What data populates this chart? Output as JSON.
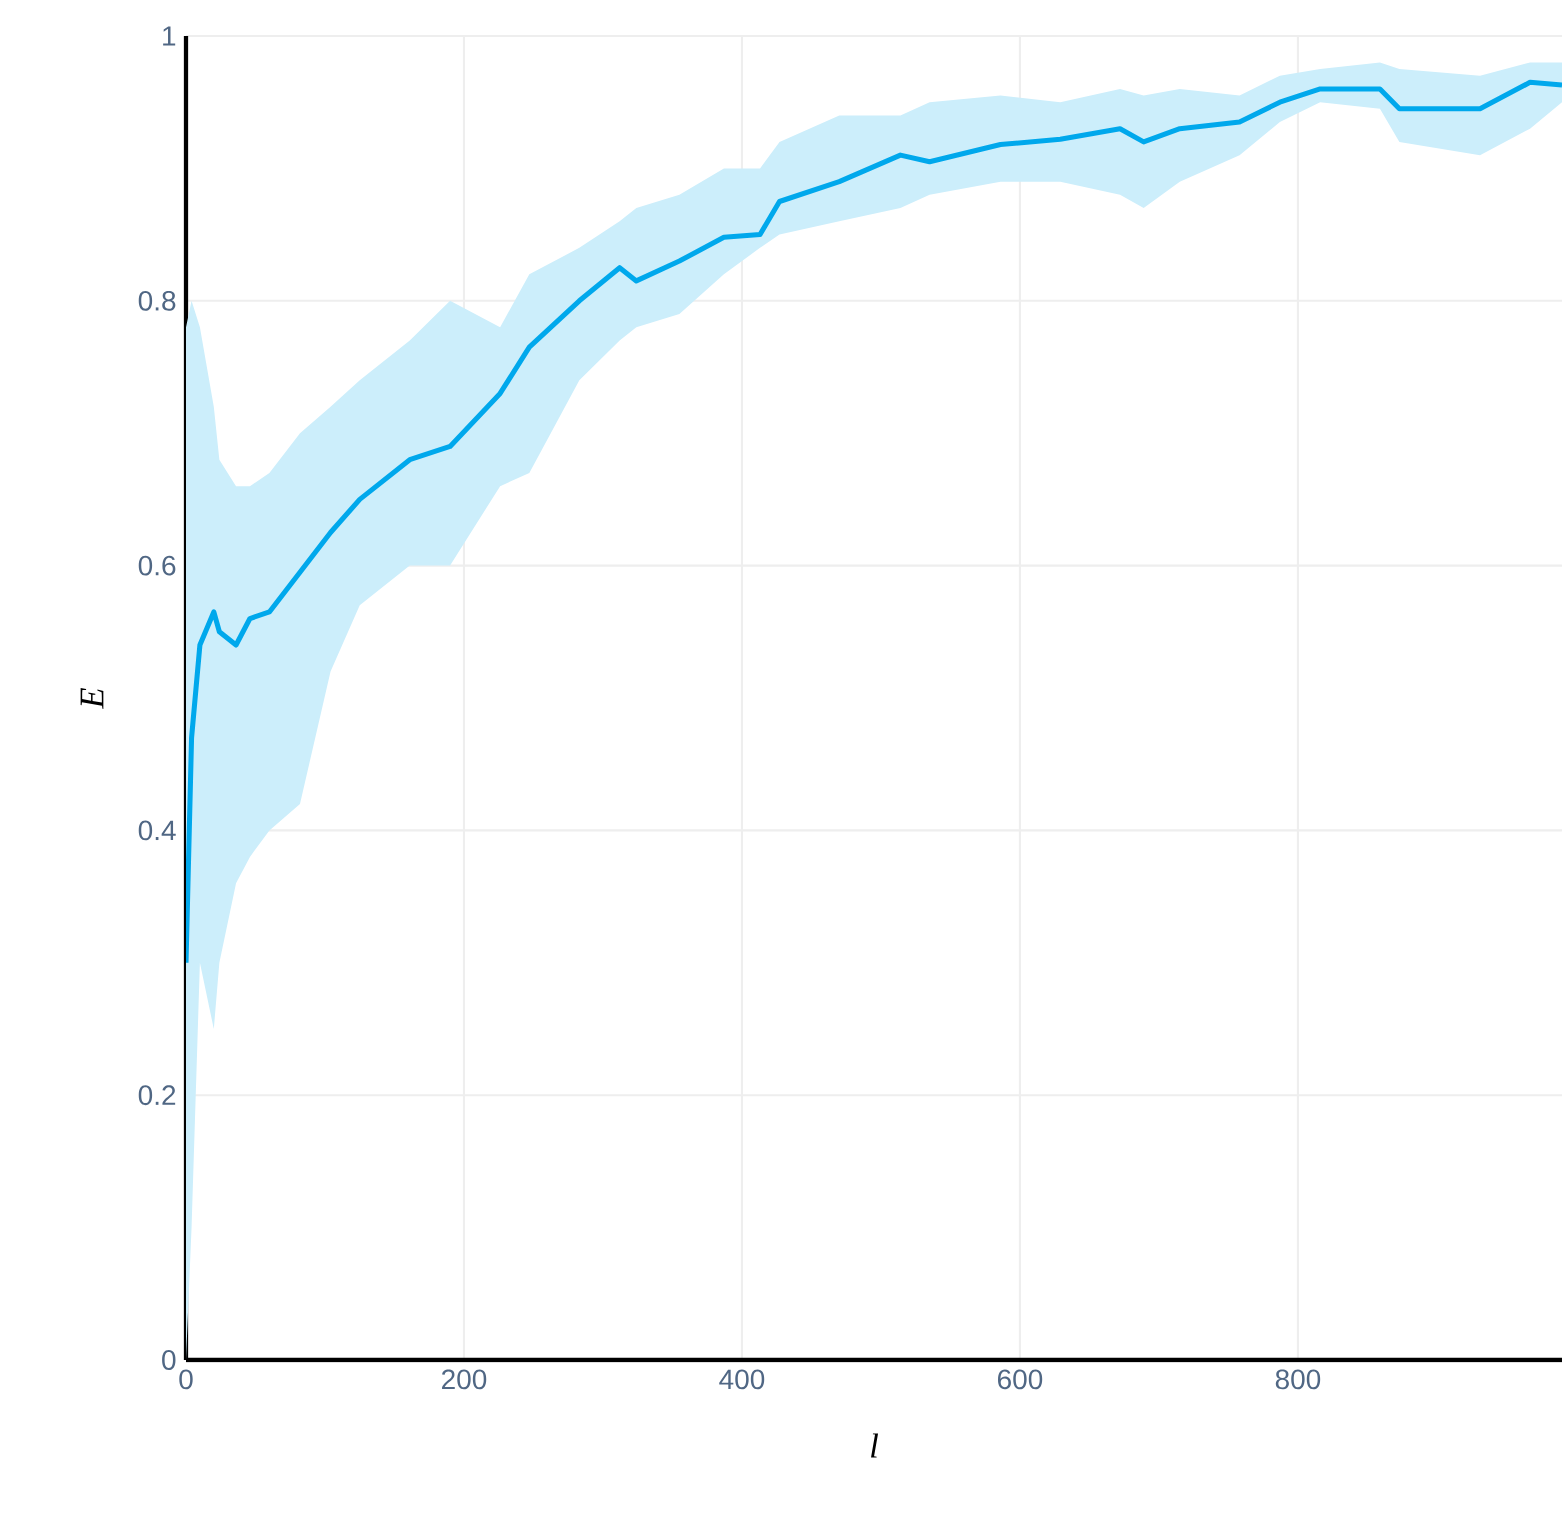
{
  "chart_data": {
    "type": "line",
    "xlabel": "l",
    "ylabel": "E",
    "xlim": [
      0,
      990
    ],
    "ylim": [
      0,
      1
    ],
    "xticks": [
      0,
      200,
      400,
      600,
      800
    ],
    "yticks": [
      0,
      0.2,
      0.4,
      0.6,
      0.8,
      1
    ],
    "grid": true,
    "marker": "none",
    "line_style": "solid",
    "series": [
      {
        "color": "#00a8ec",
        "x": [
          0,
          4,
          10,
          20,
          24,
          36,
          46,
          60,
          82,
          104,
          125,
          161,
          190,
          226,
          247,
          283,
          312,
          324,
          355,
          387,
          413,
          427,
          470,
          514,
          535,
          586,
          629,
          672,
          689,
          715,
          758,
          787,
          816,
          859,
          873,
          931,
          967,
          990
        ],
        "values": [
          0.3,
          0.47,
          0.54,
          0.565,
          0.55,
          0.54,
          0.56,
          0.565,
          0.595,
          0.625,
          0.65,
          0.68,
          0.69,
          0.73,
          0.765,
          0.8,
          0.825,
          0.815,
          0.83,
          0.848,
          0.85,
          0.875,
          0.89,
          0.91,
          0.905,
          0.918,
          0.922,
          0.93,
          0.92,
          0.93,
          0.935,
          0.95,
          0.96,
          0.96,
          0.945,
          0.945,
          0.965,
          0.963
        ],
        "lower": [
          0.0,
          0.1,
          0.3,
          0.25,
          0.3,
          0.36,
          0.38,
          0.4,
          0.42,
          0.52,
          0.57,
          0.6,
          0.6,
          0.66,
          0.67,
          0.74,
          0.77,
          0.78,
          0.79,
          0.82,
          0.84,
          0.85,
          0.86,
          0.87,
          0.88,
          0.89,
          0.89,
          0.88,
          0.87,
          0.89,
          0.91,
          0.935,
          0.95,
          0.945,
          0.92,
          0.91,
          0.93,
          0.95
        ],
        "upper": [
          0.78,
          0.8,
          0.78,
          0.72,
          0.68,
          0.66,
          0.66,
          0.67,
          0.7,
          0.72,
          0.74,
          0.77,
          0.8,
          0.78,
          0.82,
          0.84,
          0.86,
          0.87,
          0.88,
          0.9,
          0.9,
          0.92,
          0.94,
          0.94,
          0.95,
          0.955,
          0.95,
          0.96,
          0.955,
          0.96,
          0.955,
          0.97,
          0.975,
          0.98,
          0.975,
          0.97,
          0.98,
          0.98
        ]
      }
    ]
  }
}
